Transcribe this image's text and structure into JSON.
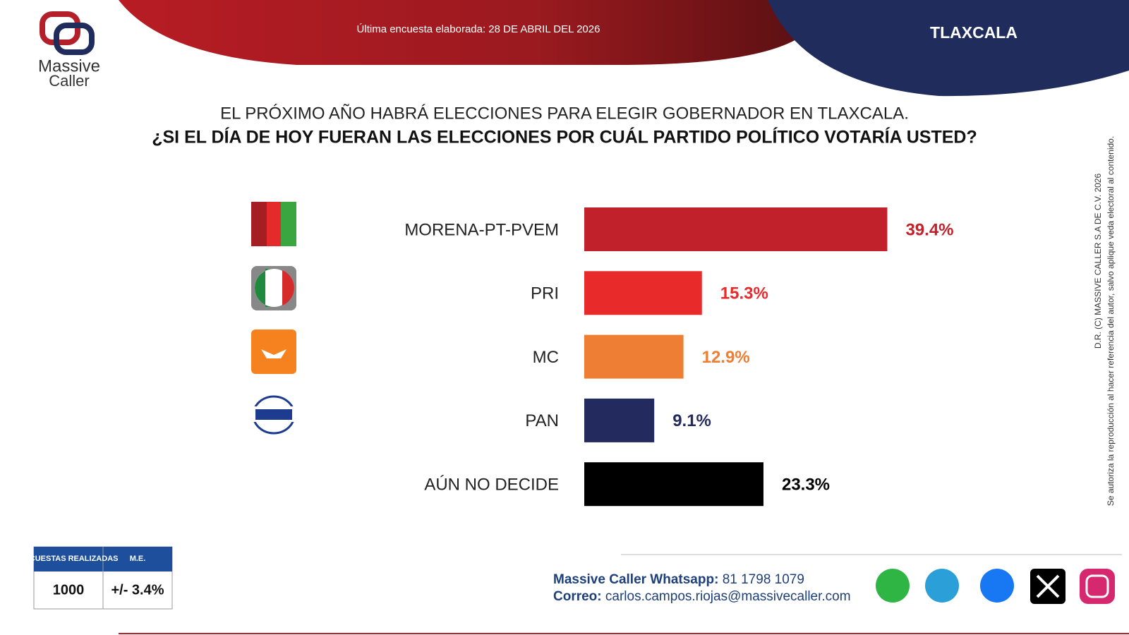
{
  "header": {
    "brand": [
      "Massive",
      "Caller"
    ],
    "date": "Última encuesta elaborada: 28 DE ABRIL DEL 2026",
    "region": "TLAXCALA"
  },
  "chart_data": {
    "type": "bar",
    "orientation": "horizontal",
    "title": "EL PRÓXIMO AÑO HABRÁ ELECCIONES PARA ELEGIR GOBERNADOR EN TLAXCALA.",
    "subtitle": "¿SI EL DÍA DE HOY FUERAN LAS ELECCIONES POR CUÁL PARTIDO POLÍTICO VOTARÍA USTED?",
    "categories": [
      "MORENA-PT-PVEM",
      "PRI",
      "MC",
      "PAN",
      "AÚN NO DECIDE"
    ],
    "values": [
      39.4,
      15.3,
      12.9,
      9.1,
      23.3
    ],
    "value_labels": [
      "39.4%",
      "15.3%",
      "12.9%",
      "9.1%",
      "23.3%"
    ],
    "colors": [
      "#c0212b",
      "#e92a2b",
      "#ee7e33",
      "#232a5e",
      "#000000"
    ]
  },
  "survey": {
    "headers": [
      "ENCUESTAS REALIZADAS",
      "M.E."
    ],
    "values": [
      "1000",
      "+/- 3.4%"
    ]
  },
  "contact": {
    "whatsapp_label": "Massive Caller Whatsapp:",
    "whatsapp": "81 1798 1079",
    "email_label": "Correo:",
    "email": "carlos.campos.riojas@massivecaller.com"
  },
  "legal": [
    "D.R. (C) MASSIVE CALLER S.A DE C.V. 2026",
    "Se autoriza la reproducción al hacer referencia del autor, salvo aplique veda electoral al contenido."
  ]
}
